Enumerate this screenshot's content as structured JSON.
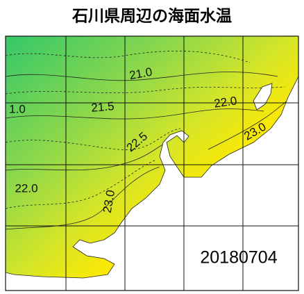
{
  "title": "石川県周辺の海面水温",
  "contour_labels": [
    "21.0",
    "1.0",
    "21.5",
    "22.0",
    "22.5",
    "23.0",
    "22.0",
    "23.0"
  ],
  "date": "20180704"
}
